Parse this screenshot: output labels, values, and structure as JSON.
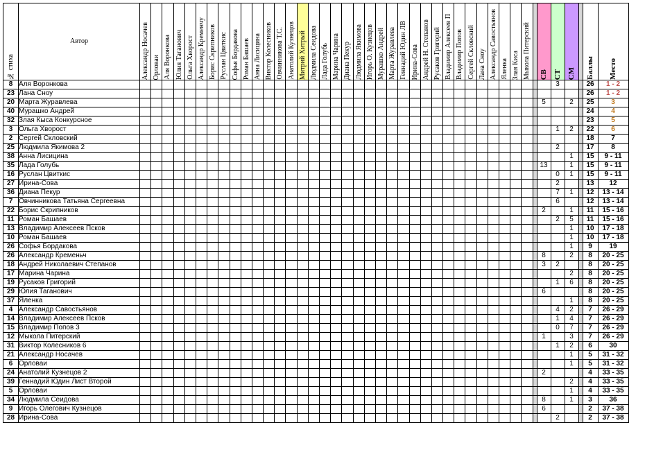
{
  "headers": {
    "num": "№ стиха",
    "author": "Автор",
    "voters": [
      "Александр Носачев",
      "Орловаи",
      "Аля Воронкова",
      "Юлия Таганович",
      "Ольга Хворост",
      "Александр Кременчу",
      "Борис Скрипников",
      "Руслан Цвиткис",
      "Софья Бордакова",
      "Роман Башаев",
      "Анна Лисицина",
      "Виктор Колесников",
      "Овчинникова Т.С.",
      "Анатолий Кузнецов",
      "Митрий Хитрый",
      "Людмила Сеидова",
      "Лада Голубь",
      "Марина Чарина",
      "Диана Пекур",
      "Людмила Якимова",
      "Игорь О. Кузнецов",
      "Мурашко Андрей",
      "Марта Журавлева",
      "Геннадий Юдин ЛВ",
      "Ирина-Сова",
      "Андрей Н. Степанов",
      "Русаков Григорий",
      "Владимир Алексеев П",
      "Владимир Попов",
      "Сергей Скловский",
      "Лана Сноу",
      "Александр Савостьянов",
      "Яленка",
      "Злая Киса",
      "Мыкола Питерский"
    ],
    "sv": "СВ",
    "st": "СТ",
    "sm": "СМ",
    "score": "Баллы",
    "place": "Место"
  },
  "rows": [
    {
      "num": "8",
      "author": "Аля Воронкова",
      "sv": "",
      "st": "3",
      "sm": "",
      "score": "26",
      "place": "1 - 2"
    },
    {
      "num": "23",
      "author": "Лана Сноу",
      "sv": "",
      "st": "",
      "sm": "",
      "score": "26",
      "place": "1 - 2"
    },
    {
      "num": "20",
      "author": "Марта Журавлева",
      "sv": "5",
      "st": "",
      "sm": "2",
      "score": "25",
      "place": "3"
    },
    {
      "num": "40",
      "author": "Мурашко Андрей",
      "sv": "",
      "st": "",
      "sm": "",
      "score": "24",
      "place": "4"
    },
    {
      "num": "32",
      "author": "Злая Кыса Конкурсное",
      "sv": "",
      "st": "",
      "sm": "",
      "score": "23",
      "place": "5"
    },
    {
      "num": "3",
      "author": "Ольга Хворост",
      "sv": "",
      "st": "1",
      "sm": "2",
      "score": "22",
      "place": "6"
    },
    {
      "num": "2",
      "author": "Сергей Скловский",
      "sv": "",
      "st": "",
      "sm": "",
      "score": "18",
      "place": "7"
    },
    {
      "num": "25",
      "author": "Людмила Якимова 2",
      "sv": "",
      "st": "2",
      "sm": "",
      "score": "17",
      "place": "8"
    },
    {
      "num": "38",
      "author": "Анна Лисицина",
      "sv": "",
      "st": "",
      "sm": "1",
      "score": "15",
      "place": "9 - 11"
    },
    {
      "num": "35",
      "author": "Лада Голубь",
      "sv": "13",
      "st": "",
      "sm": "1",
      "score": "15",
      "place": "9 - 11"
    },
    {
      "num": "16",
      "author": "Руслан Цвиткис",
      "sv": "",
      "st": "0",
      "sm": "1",
      "score": "15",
      "place": "9 - 11"
    },
    {
      "num": "27",
      "author": "Ирина-Сова",
      "sv": "",
      "st": "2",
      "sm": "",
      "score": "13",
      "place": "12"
    },
    {
      "num": "36",
      "author": "Диана Пекур",
      "sv": "",
      "st": "7",
      "sm": "1",
      "score": "12",
      "place": "13 - 14"
    },
    {
      "num": "7",
      "author": "Овчинникова Татьяна Сергеевна",
      "sv": "",
      "st": "6",
      "sm": "",
      "score": "12",
      "place": "13 - 14"
    },
    {
      "num": "22",
      "author": "Борис Скрипников",
      "sv": "2",
      "st": "",
      "sm": "1",
      "score": "11",
      "place": "15 - 16"
    },
    {
      "num": "11",
      "author": "Роман Башаев",
      "sv": "",
      "st": "2",
      "sm": "5",
      "score": "11",
      "place": "15 - 16"
    },
    {
      "num": "13",
      "author": "Владимир Алексеев Псков",
      "sv": "",
      "st": "",
      "sm": "1",
      "score": "10",
      "place": "17 - 18"
    },
    {
      "num": "10",
      "author": "Роман Башаев",
      "sv": "",
      "st": "",
      "sm": "1",
      "score": "10",
      "place": "17 - 18"
    },
    {
      "num": "26",
      "author": "Софья Бордакова",
      "sv": "",
      "st": "",
      "sm": "1",
      "score": "9",
      "place": "19"
    },
    {
      "num": "26",
      "author": "Александр Кременьч",
      "sv": "8",
      "st": "",
      "sm": "2",
      "score": "8",
      "place": "20 - 25"
    },
    {
      "num": "18",
      "author": "Андрей Николаевич Степанов",
      "sv": "3",
      "st": "2",
      "sm": "",
      "score": "8",
      "place": "20 - 25"
    },
    {
      "num": "17",
      "author": "Марина Чарина",
      "sv": "",
      "st": "",
      "sm": "2",
      "score": "8",
      "place": "20 - 25"
    },
    {
      "num": "19",
      "author": "Русаков Григорий",
      "sv": "",
      "st": "1",
      "sm": "6",
      "score": "8",
      "place": "20 - 25"
    },
    {
      "num": "29",
      "author": "Юлия Таганович",
      "sv": "6",
      "st": "",
      "sm": "",
      "score": "8",
      "place": "20 - 25"
    },
    {
      "num": "37",
      "author": "Яленка",
      "sv": "",
      "st": "",
      "sm": "1",
      "score": "8",
      "place": "20 - 25"
    },
    {
      "num": "4",
      "author": "Александр Савостьянов",
      "sv": "",
      "st": "4",
      "sm": "2",
      "score": "7",
      "place": "26 - 29"
    },
    {
      "num": "14",
      "author": "Владимир Алексеев Псков",
      "sv": "",
      "st": "1",
      "sm": "4",
      "score": "7",
      "place": "26 - 29"
    },
    {
      "num": "15",
      "author": "Владимир Попов 3",
      "sv": "",
      "st": "0",
      "sm": "7",
      "score": "7",
      "place": "26 - 29"
    },
    {
      "num": "12",
      "author": "Мыкола Питерский",
      "sv": "1",
      "st": "",
      "sm": "3",
      "score": "7",
      "place": "26 - 29"
    },
    {
      "num": "31",
      "author": "Виктор Колесников 6",
      "sv": "",
      "st": "1",
      "sm": "2",
      "score": "6",
      "place": "30"
    },
    {
      "num": "21",
      "author": "Александр Носачев",
      "sv": "",
      "st": "",
      "sm": "1",
      "score": "5",
      "place": "31 - 32"
    },
    {
      "num": "6",
      "author": "Орловаи",
      "sv": "",
      "st": "",
      "sm": "1",
      "score": "5",
      "place": "31 - 32"
    },
    {
      "num": "24",
      "author": "Анатолий Кузнецов 2",
      "sv": "2",
      "st": "",
      "sm": "",
      "score": "4",
      "place": "33 - 35"
    },
    {
      "num": "39",
      "author": "Геннадий Юдин Лист Второй",
      "sv": "",
      "st": "",
      "sm": "2",
      "score": "4",
      "place": "33 - 35"
    },
    {
      "num": "5",
      "author": "Орловаи",
      "sv": "",
      "st": "",
      "sm": "1",
      "score": "4",
      "place": "33 - 35"
    },
    {
      "num": "34",
      "author": "Людмила Сеидова",
      "sv": "8",
      "st": "",
      "sm": "1",
      "score": "3",
      "place": "36"
    },
    {
      "num": "9",
      "author": "Игорь Олегович Кузнецов",
      "sv": "6",
      "st": "",
      "sm": "",
      "score": "2",
      "place": "37 - 38"
    },
    {
      "num": "28",
      "author": "Ирина-Сова",
      "sv": "",
      "st": "2",
      "sm": "",
      "score": "2",
      "place": "37 - 38"
    }
  ]
}
